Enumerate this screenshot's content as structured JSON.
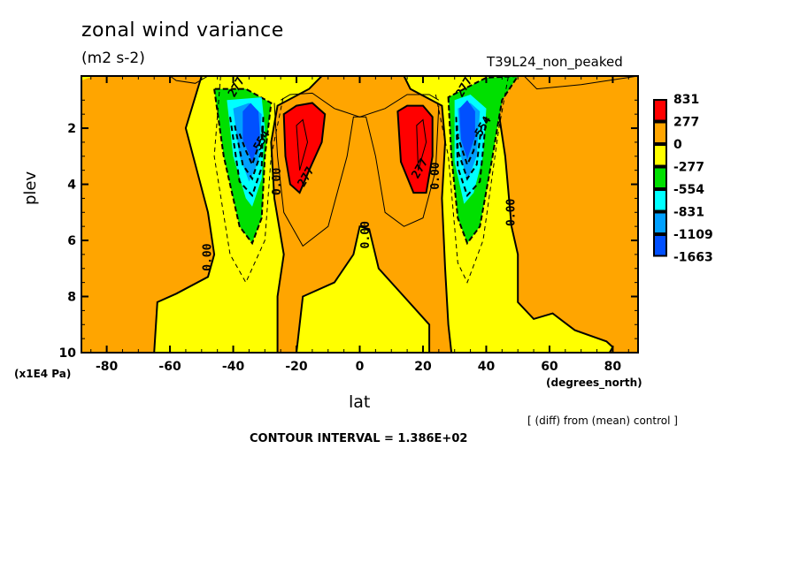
{
  "chart_data": {
    "type": "heatmap",
    "subtype": "filled-contour",
    "title": "zonal wind variance",
    "subtitle": "(m2 s-2)",
    "run_label": "T39L24_non_peaked",
    "xlabel": "lat",
    "xunits": "(degrees_north)",
    "ylabel": "plev",
    "yunits": "(x1E4 Pa)",
    "note": "[ (diff) from (mean) control ]",
    "contour_interval_text": "CONTOUR INTERVAL = 1.386E+02",
    "contour_interval": 138.6,
    "xlim": [
      -88,
      88
    ],
    "ylim": [
      10,
      0.14
    ],
    "y_inverted": true,
    "x_ticks": [
      -80,
      -60,
      -40,
      -20,
      0,
      20,
      40,
      60,
      80
    ],
    "x_tick_labels": [
      "-80",
      "-60",
      "-40",
      "-20",
      "0",
      "20",
      "40",
      "60",
      "80"
    ],
    "y_ticks": [
      2,
      4,
      6,
      8,
      10
    ],
    "y_tick_labels": [
      "2",
      "4",
      "6",
      "8",
      "10"
    ],
    "legend": {
      "placement": "right",
      "levels": [
        "831",
        "277",
        "0",
        "-277",
        "-554",
        "-831",
        "-1109",
        "-1663"
      ],
      "colors": [
        "#ff0000",
        "#ffa500",
        "#ffff00",
        "#00e000",
        "#00ffff",
        "#00a0ff",
        "#0050ff"
      ]
    },
    "contour_labels": [
      {
        "text": "277",
        "lat": -38,
        "plev": 0.6
      },
      {
        "text": "554",
        "lat": -30,
        "plev": 2.5
      },
      {
        "text": "0.00",
        "lat": -25,
        "plev": 3.9
      },
      {
        "text": "277",
        "lat": -16,
        "plev": 3.8
      },
      {
        "text": "0.00",
        "lat": -47,
        "plev": 6.6
      },
      {
        "text": "0.00",
        "lat": 3,
        "plev": 5.8
      },
      {
        "text": "277",
        "lat": 20,
        "plev": 3.5
      },
      {
        "text": "0.00",
        "lat": 25,
        "plev": 3.7
      },
      {
        "text": "277",
        "lat": 34,
        "plev": 0.6
      },
      {
        "text": "554",
        "lat": 40,
        "plev": 2.0
      },
      {
        "text": "0.00",
        "lat": 49,
        "plev": 5.0
      }
    ],
    "features": [
      {
        "name": "southern-negative-core",
        "lat": -34,
        "plev": 2.0,
        "min_level": -1663
      },
      {
        "name": "southern-positive-core",
        "lat": -19,
        "plev": 2.6,
        "max_level": 831
      },
      {
        "name": "northern-positive-core",
        "lat": 20,
        "plev": 2.6,
        "max_level": 831
      },
      {
        "name": "northern-negative-core",
        "lat": 34,
        "plev": 2.0,
        "min_level": -1663
      }
    ]
  }
}
